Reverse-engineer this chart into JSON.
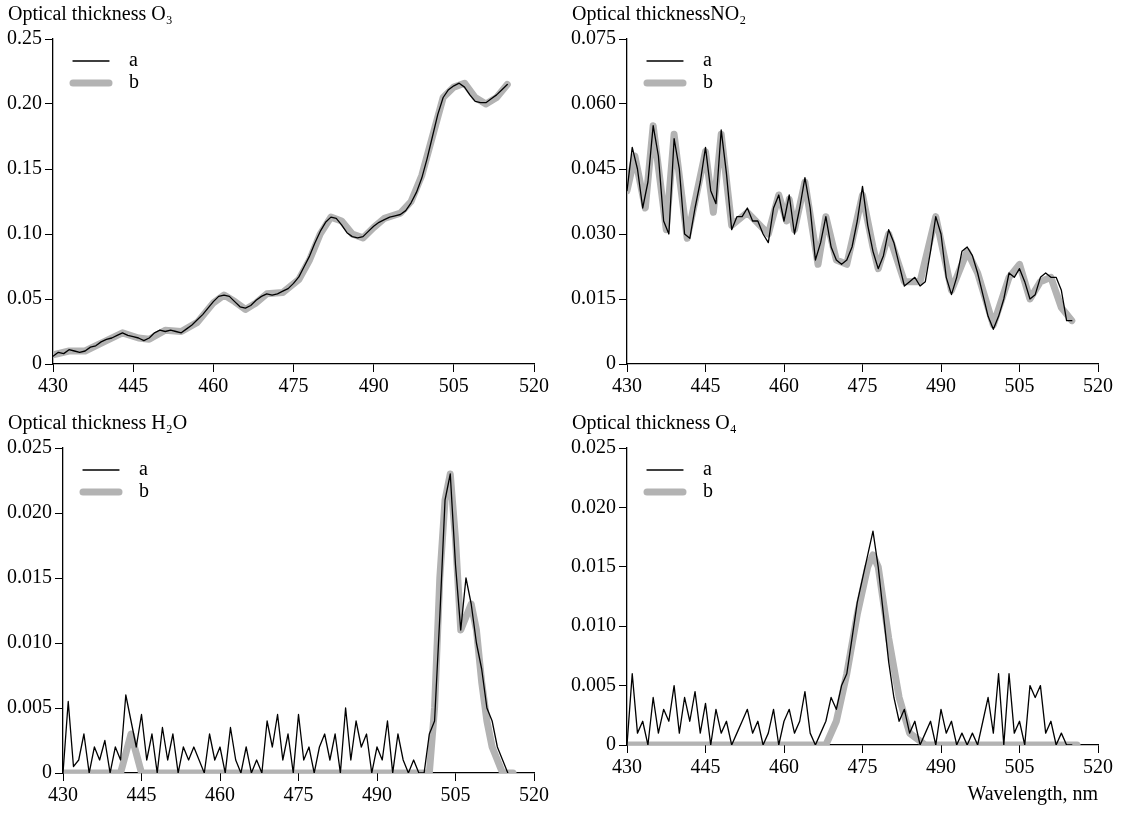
{
  "chart_data": [
    {
      "type": "line",
      "title": "Optical thickness O₃",
      "xlim": [
        430,
        520
      ],
      "xticks": [
        430,
        445,
        460,
        475,
        490,
        505,
        520
      ],
      "ylim": [
        0,
        0.25
      ],
      "yticks": [
        {
          "value": 0,
          "label": "0"
        },
        {
          "value": 0.05,
          "label": "0.05"
        },
        {
          "value": 0.1,
          "label": "0.10"
        },
        {
          "value": 0.15,
          "label": "0.15"
        },
        {
          "value": 0.2,
          "label": "0.20"
        },
        {
          "value": 0.25,
          "label": "0.25"
        }
      ],
      "grid": false,
      "legend": "top left",
      "marker": "none",
      "x": [
        430,
        431,
        432,
        433,
        434,
        435,
        436,
        437,
        438,
        439,
        440,
        441,
        442,
        443,
        444,
        445,
        446,
        447,
        448,
        449,
        450,
        451,
        452,
        453,
        454,
        455,
        456,
        457,
        458,
        459,
        460,
        461,
        462,
        463,
        464,
        465,
        466,
        467,
        468,
        469,
        470,
        471,
        472,
        473,
        474,
        475,
        476,
        477,
        478,
        479,
        480,
        481,
        482,
        483,
        484,
        485,
        486,
        487,
        488,
        489,
        490,
        491,
        492,
        493,
        494,
        495,
        496,
        497,
        498,
        499,
        500,
        501,
        502,
        503,
        504,
        505,
        506,
        507,
        508,
        509,
        510,
        511,
        512,
        513,
        514,
        515
      ],
      "series": [
        {
          "name": "a",
          "color": "#000000",
          "values": [
            0.006,
            0.009,
            0.008,
            0.011,
            0.01,
            0.009,
            0.01,
            0.013,
            0.014,
            0.017,
            0.019,
            0.02,
            0.022,
            0.024,
            0.022,
            0.021,
            0.02,
            0.018,
            0.02,
            0.024,
            0.026,
            0.025,
            0.026,
            0.025,
            0.024,
            0.027,
            0.03,
            0.034,
            0.038,
            0.043,
            0.048,
            0.052,
            0.053,
            0.052,
            0.048,
            0.044,
            0.043,
            0.045,
            0.049,
            0.052,
            0.054,
            0.053,
            0.054,
            0.056,
            0.058,
            0.062,
            0.067,
            0.075,
            0.083,
            0.093,
            0.102,
            0.109,
            0.113,
            0.112,
            0.107,
            0.101,
            0.098,
            0.097,
            0.098,
            0.102,
            0.106,
            0.109,
            0.111,
            0.113,
            0.114,
            0.115,
            0.118,
            0.124,
            0.132,
            0.143,
            0.158,
            0.175,
            0.192,
            0.205,
            0.211,
            0.214,
            0.216,
            0.213,
            0.207,
            0.202,
            0.201,
            0.201,
            0.204,
            0.207,
            0.211,
            0.215
          ]
        },
        {
          "name": "b",
          "color": "#b3b3b3",
          "x": [
            430,
            433,
            436,
            440,
            443,
            446,
            448,
            451,
            454,
            457,
            460,
            462,
            464,
            466,
            468,
            470,
            473,
            476,
            478,
            480,
            482,
            484,
            486,
            488,
            490,
            492,
            495,
            497,
            499,
            501,
            503,
            505,
            507,
            509,
            511,
            513,
            515
          ],
          "values": [
            0.007,
            0.01,
            0.01,
            0.018,
            0.024,
            0.02,
            0.019,
            0.026,
            0.025,
            0.032,
            0.047,
            0.053,
            0.048,
            0.042,
            0.047,
            0.054,
            0.055,
            0.065,
            0.08,
            0.1,
            0.113,
            0.11,
            0.1,
            0.097,
            0.105,
            0.112,
            0.116,
            0.125,
            0.145,
            0.175,
            0.205,
            0.213,
            0.216,
            0.205,
            0.2,
            0.205,
            0.215
          ]
        }
      ]
    },
    {
      "type": "line",
      "title": "Optical thicknessNO₂",
      "xlim": [
        430,
        520
      ],
      "xticks": [
        430,
        445,
        460,
        475,
        490,
        505,
        520
      ],
      "ylim": [
        0,
        0.075
      ],
      "yticks": [
        {
          "value": 0,
          "label": "0"
        },
        {
          "value": 0.015,
          "label": "0.015"
        },
        {
          "value": 0.03,
          "label": "0.030"
        },
        {
          "value": 0.045,
          "label": "0.045"
        },
        {
          "value": 0.06,
          "label": "0.060"
        },
        {
          "value": 0.075,
          "label": "0.075"
        }
      ],
      "grid": false,
      "legend": "top left",
      "marker": "none",
      "x": [
        430,
        431,
        432,
        433,
        434,
        435,
        436,
        437,
        438,
        439,
        440,
        441,
        442,
        443,
        444,
        445,
        446,
        447,
        448,
        449,
        450,
        451,
        452,
        453,
        454,
        455,
        456,
        457,
        458,
        459,
        460,
        461,
        462,
        463,
        464,
        465,
        466,
        467,
        468,
        469,
        470,
        471,
        472,
        473,
        474,
        475,
        476,
        477,
        478,
        479,
        480,
        481,
        482,
        483,
        484,
        485,
        486,
        487,
        488,
        489,
        490,
        491,
        492,
        493,
        494,
        495,
        496,
        497,
        498,
        499,
        500,
        501,
        502,
        503,
        504,
        505,
        506,
        507,
        508,
        509,
        510,
        511,
        512,
        513,
        514,
        515
      ],
      "series": [
        {
          "name": "a",
          "color": "#000000",
          "values": [
            0.04,
            0.05,
            0.045,
            0.036,
            0.042,
            0.055,
            0.048,
            0.033,
            0.03,
            0.052,
            0.045,
            0.03,
            0.029,
            0.036,
            0.042,
            0.05,
            0.04,
            0.037,
            0.054,
            0.044,
            0.031,
            0.034,
            0.034,
            0.036,
            0.033,
            0.033,
            0.03,
            0.028,
            0.036,
            0.039,
            0.033,
            0.039,
            0.03,
            0.036,
            0.043,
            0.036,
            0.024,
            0.028,
            0.034,
            0.027,
            0.024,
            0.023,
            0.024,
            0.027,
            0.033,
            0.041,
            0.032,
            0.026,
            0.022,
            0.025,
            0.031,
            0.028,
            0.023,
            0.018,
            0.019,
            0.02,
            0.018,
            0.019,
            0.026,
            0.034,
            0.03,
            0.02,
            0.016,
            0.02,
            0.026,
            0.027,
            0.025,
            0.021,
            0.016,
            0.011,
            0.008,
            0.011,
            0.015,
            0.021,
            0.02,
            0.022,
            0.019,
            0.015,
            0.016,
            0.02,
            0.021,
            0.02,
            0.02,
            0.017,
            0.01,
            0.01
          ]
        },
        {
          "name": "b",
          "color": "#b3b3b3",
          "x": [
            430,
            431.5,
            433.5,
            435,
            437.5,
            439,
            441.5,
            445,
            446.5,
            448,
            450,
            453,
            457,
            459,
            460.5,
            461,
            462,
            464,
            466.5,
            468,
            470,
            472,
            475,
            477,
            478,
            480,
            483,
            486,
            489,
            492,
            495,
            497,
            500,
            503,
            505,
            507,
            509,
            511,
            513,
            515
          ],
          "values": [
            0.04,
            0.048,
            0.036,
            0.055,
            0.031,
            0.053,
            0.029,
            0.049,
            0.035,
            0.053,
            0.032,
            0.035,
            0.03,
            0.039,
            0.033,
            0.038,
            0.031,
            0.042,
            0.023,
            0.034,
            0.024,
            0.023,
            0.039,
            0.027,
            0.022,
            0.03,
            0.019,
            0.019,
            0.034,
            0.017,
            0.026,
            0.021,
            0.009,
            0.02,
            0.023,
            0.015,
            0.019,
            0.02,
            0.013,
            0.01
          ]
        }
      ]
    },
    {
      "type": "line",
      "title": "Optical thickness H₂O",
      "xlim": [
        430,
        520
      ],
      "xticks": [
        430,
        445,
        460,
        475,
        490,
        505,
        520
      ],
      "ylim": [
        0,
        0.025
      ],
      "yticks": [
        {
          "value": 0,
          "label": "0"
        },
        {
          "value": 0.005,
          "label": "0.005"
        },
        {
          "value": 0.01,
          "label": "0.010"
        },
        {
          "value": 0.015,
          "label": "0.015"
        },
        {
          "value": 0.02,
          "label": "0.020"
        },
        {
          "value": 0.025,
          "label": "0.025"
        }
      ],
      "grid": false,
      "legend": "top left",
      "marker": "none",
      "x": [
        430,
        431,
        432,
        433,
        434,
        435,
        436,
        437,
        438,
        439,
        440,
        441,
        442,
        443,
        444,
        445,
        446,
        447,
        448,
        449,
        450,
        451,
        452,
        453,
        454,
        455,
        456,
        457,
        458,
        459,
        460,
        461,
        462,
        463,
        464,
        465,
        466,
        467,
        468,
        469,
        470,
        471,
        472,
        473,
        474,
        475,
        476,
        477,
        478,
        479,
        480,
        481,
        482,
        483,
        484,
        485,
        486,
        487,
        488,
        489,
        490,
        491,
        492,
        493,
        494,
        495,
        496,
        497,
        498,
        499,
        500,
        501,
        502,
        503,
        504,
        505,
        506,
        507,
        508,
        509,
        510,
        511,
        512,
        513,
        514,
        515
      ],
      "series": [
        {
          "name": "a",
          "color": "#000000",
          "values": [
            0,
            0.0055,
            0.0005,
            0.001,
            0.003,
            0,
            0.002,
            0.001,
            0.0025,
            0,
            0.002,
            0.001,
            0.006,
            0.004,
            0.002,
            0.0045,
            0.001,
            0.003,
            0,
            0.0035,
            0.001,
            0.003,
            0,
            0.002,
            0.001,
            0.002,
            0.001,
            0,
            0.003,
            0.001,
            0.002,
            0,
            0.0035,
            0.001,
            0,
            0.002,
            0,
            0.001,
            0,
            0.004,
            0.002,
            0.0045,
            0.001,
            0.003,
            0,
            0.0045,
            0.001,
            0.002,
            0,
            0.002,
            0.003,
            0.001,
            0.003,
            0,
            0.005,
            0.001,
            0.004,
            0.002,
            0.003,
            0,
            0.002,
            0.001,
            0.004,
            0,
            0.003,
            0.001,
            0,
            0.001,
            0,
            0,
            0.003,
            0.004,
            0.012,
            0.021,
            0.023,
            0.016,
            0.011,
            0.015,
            0.013,
            0.01,
            0.008,
            0.005,
            0.004,
            0.002,
            0.001,
            0
          ]
        },
        {
          "name": "b",
          "color": "#b3b3b3",
          "x": [
            430,
            441,
            443,
            445,
            500,
            501,
            502,
            503,
            504,
            505,
            506,
            507,
            508,
            509,
            510,
            511,
            512,
            513,
            514,
            516
          ],
          "values": [
            0,
            0,
            0.003,
            0,
            0,
            0.005,
            0.015,
            0.021,
            0.023,
            0.018,
            0.011,
            0.012,
            0.013,
            0.011,
            0.007,
            0.004,
            0.002,
            0.001,
            0,
            0
          ]
        }
      ]
    },
    {
      "type": "line",
      "title": "Optical thickness O₄",
      "xlabel": "Wavelength, nm",
      "xlim": [
        430,
        520
      ],
      "xticks": [
        430,
        445,
        460,
        475,
        490,
        505,
        520
      ],
      "ylim": [
        0,
        0.025
      ],
      "yticks": [
        {
          "value": 0,
          "label": "0"
        },
        {
          "value": 0.005,
          "label": "0.005"
        },
        {
          "value": 0.01,
          "label": "0.010"
        },
        {
          "value": 0.015,
          "label": "0.015"
        },
        {
          "value": 0.02,
          "label": "0.020"
        },
        {
          "value": 0.025,
          "label": "0.025"
        }
      ],
      "grid": false,
      "legend": "top left",
      "marker": "none",
      "x": [
        430,
        431,
        432,
        433,
        434,
        435,
        436,
        437,
        438,
        439,
        440,
        441,
        442,
        443,
        444,
        445,
        446,
        447,
        448,
        449,
        450,
        451,
        452,
        453,
        454,
        455,
        456,
        457,
        458,
        459,
        460,
        461,
        462,
        463,
        464,
        465,
        466,
        467,
        468,
        469,
        470,
        471,
        472,
        473,
        474,
        475,
        476,
        477,
        478,
        479,
        480,
        481,
        482,
        483,
        484,
        485,
        486,
        487,
        488,
        489,
        490,
        491,
        492,
        493,
        494,
        495,
        496,
        497,
        498,
        499,
        500,
        501,
        502,
        503,
        504,
        505,
        506,
        507,
        508,
        509,
        510,
        511,
        512,
        513,
        514,
        515
      ],
      "series": [
        {
          "name": "a",
          "color": "#000000",
          "values": [
            0,
            0.006,
            0.001,
            0.002,
            0,
            0.004,
            0.001,
            0.003,
            0.002,
            0.005,
            0.001,
            0.004,
            0.002,
            0.0045,
            0.001,
            0.0035,
            0,
            0.003,
            0.001,
            0.002,
            0,
            0.001,
            0.002,
            0.003,
            0.001,
            0.002,
            0,
            0.001,
            0.003,
            0,
            0.002,
            0.003,
            0.001,
            0.002,
            0.0045,
            0.001,
            0,
            0.001,
            0.002,
            0.004,
            0.003,
            0.005,
            0.006,
            0.009,
            0.012,
            0.014,
            0.016,
            0.018,
            0.015,
            0.011,
            0.007,
            0.004,
            0.002,
            0.003,
            0.001,
            0.002,
            0,
            0.001,
            0.002,
            0,
            0.003,
            0.001,
            0.002,
            0,
            0.001,
            0,
            0.001,
            0,
            0.002,
            0.004,
            0.001,
            0.006,
            0,
            0.006,
            0.001,
            0.002,
            0,
            0.005,
            0.004,
            0.005,
            0.001,
            0.002,
            0,
            0.001,
            0,
            0
          ]
        },
        {
          "name": "b",
          "color": "#b3b3b3",
          "x": [
            430,
            468,
            470,
            472,
            474,
            476,
            477,
            478,
            480,
            482,
            484,
            487,
            516
          ],
          "values": [
            0,
            0,
            0.002,
            0.006,
            0.011,
            0.015,
            0.016,
            0.015,
            0.009,
            0.004,
            0.001,
            0,
            0
          ]
        }
      ]
    }
  ]
}
